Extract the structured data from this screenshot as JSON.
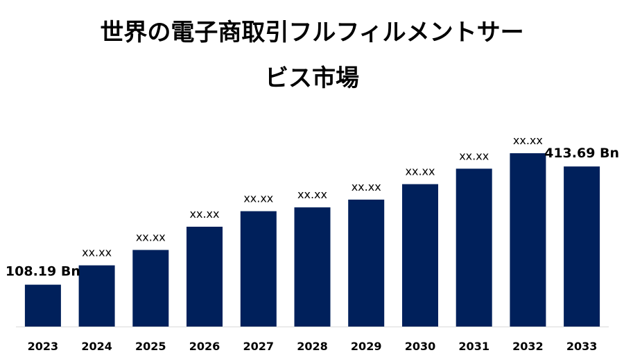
{
  "title_lines": [
    "世界の電子商取引フルフィルメントサー",
    "ビス市場"
  ],
  "colors": {
    "bar": "#00205B",
    "axis": "#d9d9d9",
    "text": "#000000",
    "background": "#ffffff"
  },
  "chart_data": {
    "type": "bar",
    "title": "世界の電子商取引フルフィルメントサービス市場",
    "categories": [
      "2023",
      "2024",
      "2025",
      "2026",
      "2027",
      "2028",
      "2029",
      "2030",
      "2031",
      "2032",
      "2033"
    ],
    "values": [
      108.19,
      158.2,
      198.1,
      258.1,
      298.1,
      308.1,
      328.1,
      368.0,
      408.0,
      448.0,
      413.69
    ],
    "data_labels": [
      "108.19 Bn",
      "xx.xx",
      "xx.xx",
      "xx.xx",
      "xx.xx",
      "xx.xx",
      "xx.xx",
      "xx.xx",
      "xx.xx",
      "xx.xx",
      "413.69 Bn"
    ],
    "xlabel": "",
    "ylabel": "",
    "ylim": [
      0,
      500
    ],
    "grid": false,
    "legend": "none"
  }
}
